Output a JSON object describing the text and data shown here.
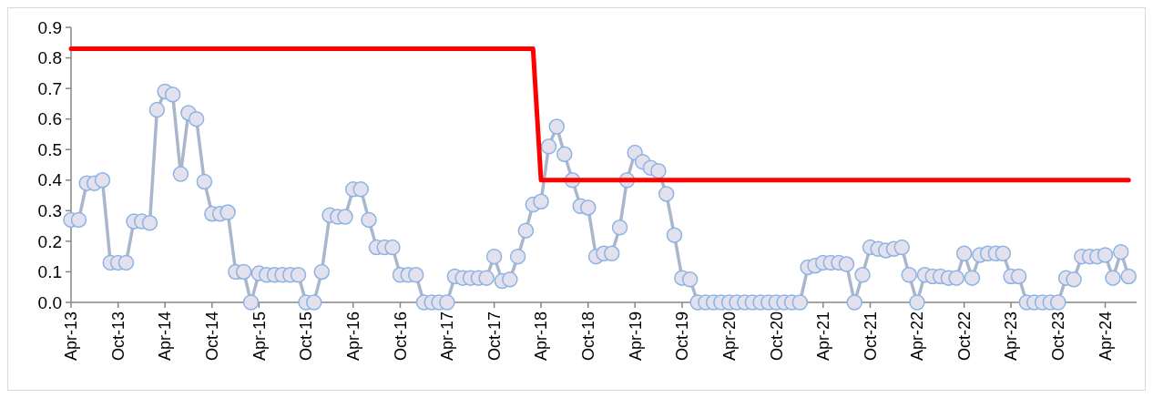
{
  "chart_data": {
    "type": "line",
    "marker": "circle",
    "x": [
      "2013-04",
      "2013-05",
      "2013-06",
      "2013-07",
      "2013-08",
      "2013-09",
      "2013-10",
      "2013-11",
      "2013-12",
      "2014-01",
      "2014-02",
      "2014-03",
      "2014-04",
      "2014-05",
      "2014-06",
      "2014-07",
      "2014-08",
      "2014-09",
      "2014-10",
      "2014-11",
      "2014-12",
      "2015-01",
      "2015-02",
      "2015-03",
      "2015-04",
      "2015-05",
      "2015-06",
      "2015-07",
      "2015-08",
      "2015-09",
      "2015-10",
      "2015-11",
      "2015-12",
      "2016-01",
      "2016-02",
      "2016-03",
      "2016-04",
      "2016-05",
      "2016-06",
      "2016-07",
      "2016-08",
      "2016-09",
      "2016-10",
      "2016-11",
      "2016-12",
      "2017-01",
      "2017-02",
      "2017-03",
      "2017-04",
      "2017-05",
      "2017-06",
      "2017-07",
      "2017-08",
      "2017-09",
      "2017-10",
      "2017-11",
      "2017-12",
      "2018-01",
      "2018-02",
      "2018-03",
      "2018-04",
      "2018-05",
      "2018-06",
      "2018-07",
      "2018-08",
      "2018-09",
      "2018-10",
      "2018-11",
      "2018-12",
      "2019-01",
      "2019-02",
      "2019-03",
      "2019-04",
      "2019-05",
      "2019-06",
      "2019-07",
      "2019-08",
      "2019-09",
      "2019-10",
      "2019-11",
      "2019-12",
      "2020-01",
      "2020-02",
      "2020-03",
      "2020-04",
      "2020-05",
      "2020-06",
      "2020-07",
      "2020-08",
      "2020-09",
      "2020-10",
      "2020-11",
      "2020-12",
      "2021-01",
      "2021-02",
      "2021-03",
      "2021-04",
      "2021-05",
      "2021-06",
      "2021-07",
      "2021-08",
      "2021-09",
      "2021-10",
      "2021-11",
      "2021-12",
      "2022-01",
      "2022-02",
      "2022-03",
      "2022-04",
      "2022-05",
      "2022-06",
      "2022-07",
      "2022-08",
      "2022-09",
      "2022-10",
      "2022-11",
      "2022-12",
      "2023-01",
      "2023-02",
      "2023-03",
      "2023-04",
      "2023-05",
      "2023-06",
      "2023-07",
      "2023-08",
      "2023-09",
      "2023-10",
      "2023-11",
      "2023-12",
      "2024-01",
      "2024-02",
      "2024-03",
      "2024-04",
      "2024-05",
      "2024-06",
      "2024-07"
    ],
    "series": [
      {
        "color": "#a9b7cd",
        "values": [
          0.27,
          0.27,
          0.39,
          0.39,
          0.4,
          0.13,
          0.13,
          0.13,
          0.265,
          0.265,
          0.26,
          0.63,
          0.69,
          0.68,
          0.42,
          0.62,
          0.6,
          0.395,
          0.29,
          0.29,
          0.295,
          0.1,
          0.1,
          0,
          0.095,
          0.09,
          0.09,
          0.09,
          0.09,
          0.09,
          0,
          0,
          0.1,
          0.285,
          0.28,
          0.28,
          0.37,
          0.37,
          0.27,
          0.18,
          0.18,
          0.18,
          0.09,
          0.09,
          0.09,
          0,
          0,
          0,
          0,
          0.085,
          0.08,
          0.08,
          0.08,
          0.08,
          0.15,
          0.07,
          0.075,
          0.15,
          0.235,
          0.32,
          0.33,
          0.51,
          0.575,
          0.485,
          0.4,
          0.315,
          0.31,
          0.15,
          0.16,
          0.16,
          0.245,
          0.4,
          0.49,
          0.46,
          0.44,
          0.43,
          0.355,
          0.22,
          0.08,
          0.075,
          0,
          0,
          0,
          0,
          0,
          0,
          0,
          0,
          0,
          0,
          0,
          0,
          0,
          0,
          0.115,
          0.12,
          0.13,
          0.13,
          0.13,
          0.125,
          0,
          0.09,
          0.18,
          0.175,
          0.17,
          0.175,
          0.18,
          0.09,
          0,
          0.09,
          0.085,
          0.085,
          0.08,
          0.08,
          0.16,
          0.08,
          0.155,
          0.16,
          0.16,
          0.16,
          0.085,
          0.085,
          0,
          0,
          0,
          0,
          0,
          0.08,
          0.075,
          0.15,
          0.15,
          0.15,
          0.155,
          0.08,
          0.165,
          0.085
        ]
      },
      {
        "type": "line",
        "marker": "none",
        "color": "#ff0000",
        "x": [
          "2013-04",
          "2018-03",
          "2018-04",
          "2024-07"
        ],
        "values": [
          0.83,
          0.83,
          0.4,
          0.4
        ]
      }
    ],
    "xlim": [
      "2013-04",
      "2024-08"
    ],
    "xticks": [
      {
        "value": "2013-04",
        "label": "Apr-13"
      },
      {
        "value": "2013-10",
        "label": "Oct-13"
      },
      {
        "value": "2014-04",
        "label": "Apr-14"
      },
      {
        "value": "2014-10",
        "label": "Oct-14"
      },
      {
        "value": "2015-04",
        "label": "Apr-15"
      },
      {
        "value": "2015-10",
        "label": "Oct-15"
      },
      {
        "value": "2016-04",
        "label": "Apr-16"
      },
      {
        "value": "2016-10",
        "label": "Oct-16"
      },
      {
        "value": "2017-04",
        "label": "Apr-17"
      },
      {
        "value": "2017-10",
        "label": "Oct-17"
      },
      {
        "value": "2018-04",
        "label": "Apr-18"
      },
      {
        "value": "2018-10",
        "label": "Oct-18"
      },
      {
        "value": "2019-04",
        "label": "Apr-19"
      },
      {
        "value": "2019-10",
        "label": "Oct-19"
      },
      {
        "value": "2020-04",
        "label": "Apr-20"
      },
      {
        "value": "2020-10",
        "label": "Oct-20"
      },
      {
        "value": "2021-04",
        "label": "Apr-21"
      },
      {
        "value": "2021-10",
        "label": "Oct-21"
      },
      {
        "value": "2022-04",
        "label": "Apr-22"
      },
      {
        "value": "2022-10",
        "label": "Oct-22"
      },
      {
        "value": "2023-04",
        "label": "Apr-23"
      },
      {
        "value": "2023-10",
        "label": "Oct-23"
      },
      {
        "value": "2024-04",
        "label": "Apr-24"
      }
    ],
    "ylim": [
      0,
      0.9
    ],
    "yticks": [
      {
        "value": 0,
        "label": "0.0"
      },
      {
        "value": 0.1,
        "label": "0.1"
      },
      {
        "value": 0.2,
        "label": "0.2"
      },
      {
        "value": 0.3,
        "label": "0.3"
      },
      {
        "value": 0.4,
        "label": "0.4"
      },
      {
        "value": 0.5,
        "label": "0.5"
      },
      {
        "value": 0.6,
        "label": "0.6"
      },
      {
        "value": 0.7,
        "label": "0.7"
      },
      {
        "value": 0.8,
        "label": "0.8"
      },
      {
        "value": 0.9,
        "label": "0.9"
      }
    ]
  }
}
